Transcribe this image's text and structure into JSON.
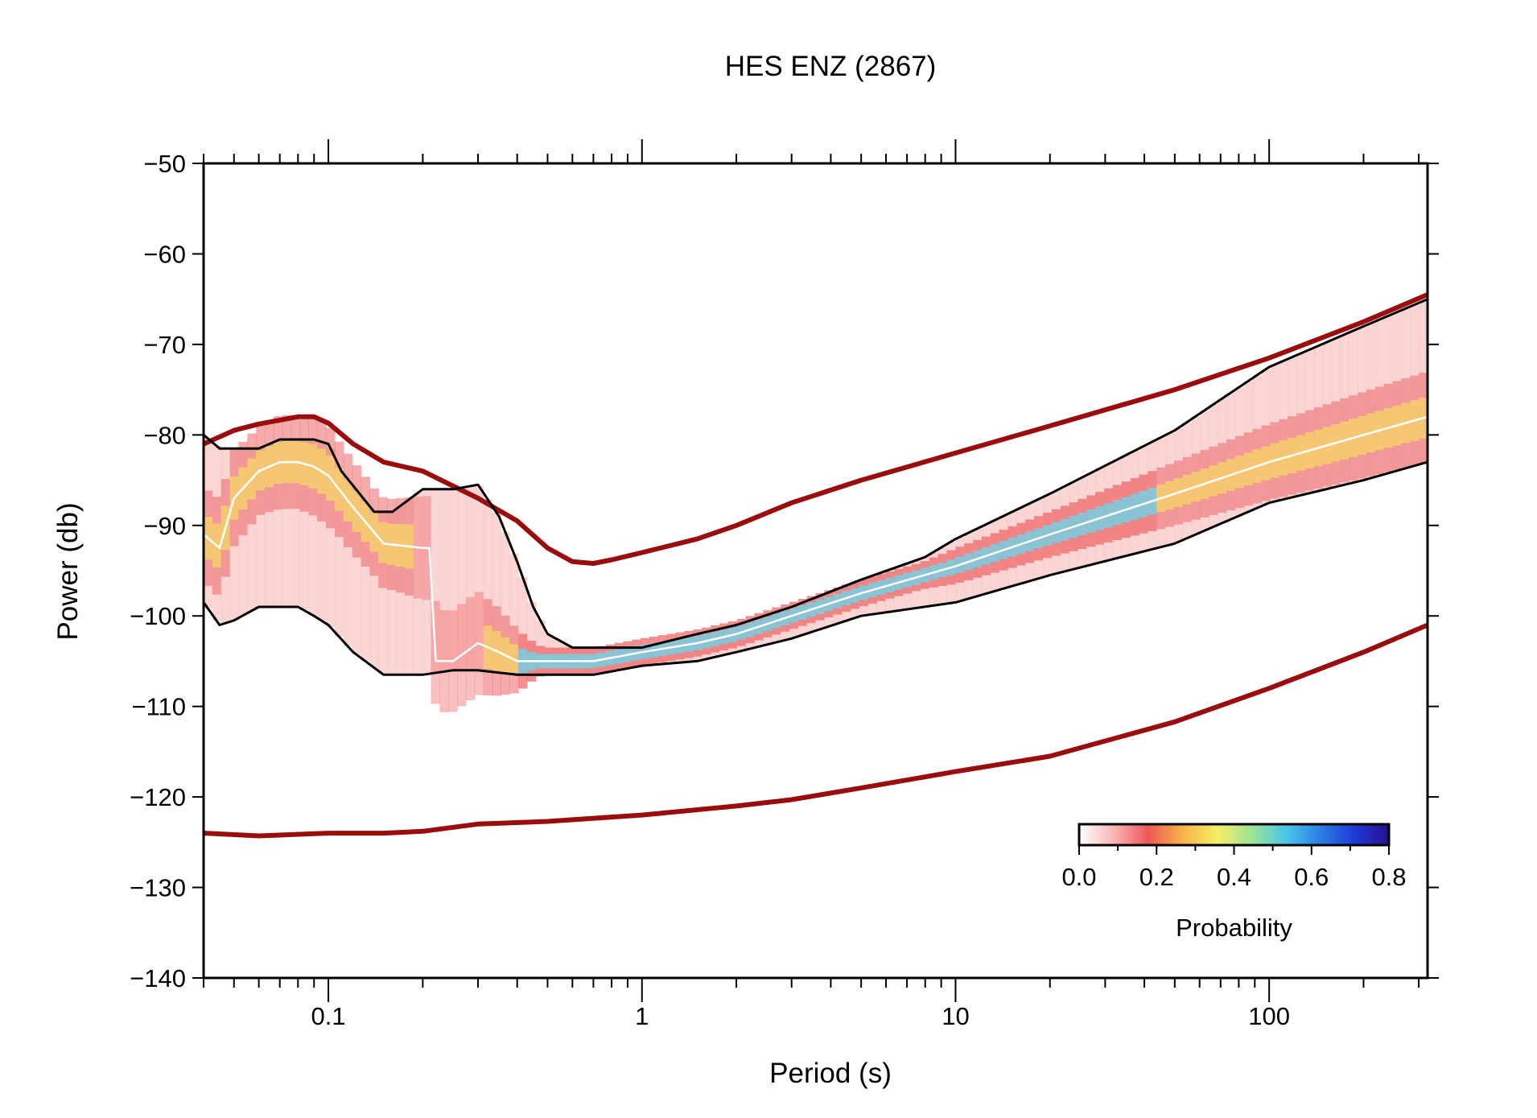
{
  "chart_data": {
    "type": "line",
    "title": "HES ENZ (2867)",
    "xlabel": "Period (s)",
    "ylabel": "Power (db)",
    "x_scale": "log",
    "xlim": [
      0.04,
      320
    ],
    "ylim": [
      -140,
      -50
    ],
    "x_ticks": [
      {
        "value": 0.1,
        "label": "0.1"
      },
      {
        "value": 1,
        "label": "1"
      },
      {
        "value": 10,
        "label": "10"
      },
      {
        "value": 100,
        "label": "100"
      }
    ],
    "y_ticks": [
      {
        "value": -50,
        "label": "−50"
      },
      {
        "value": -60,
        "label": "−60"
      },
      {
        "value": -70,
        "label": "−70"
      },
      {
        "value": -80,
        "label": "−80"
      },
      {
        "value": -90,
        "label": "−90"
      },
      {
        "value": -100,
        "label": "−100"
      },
      {
        "value": -110,
        "label": "−110"
      },
      {
        "value": -120,
        "label": "−120"
      },
      {
        "value": -130,
        "label": "−130"
      },
      {
        "value": -140,
        "label": "−140"
      }
    ],
    "colors": {
      "noise_models": "#9b0d0d",
      "percentile_lines": "#000000",
      "mode_line": "#ffffff",
      "pdf_low": "#f7b8b8",
      "pdf_high": "#2a0f8f"
    },
    "series": [
      {
        "role": "high-noise-model",
        "x": [
          0.04,
          0.05,
          0.06,
          0.08,
          0.09,
          0.1,
          0.12,
          0.15,
          0.2,
          0.3,
          0.4,
          0.5,
          0.6,
          0.7,
          0.8,
          1,
          1.5,
          2,
          3,
          5,
          10,
          20,
          50,
          100,
          200,
          320
        ],
        "y": [
          -81,
          -79.5,
          -78.8,
          -78,
          -78,
          -78.7,
          -81,
          -83,
          -84,
          -87,
          -89.5,
          -92.5,
          -94,
          -94.2,
          -93.8,
          -93,
          -91.5,
          -90,
          -87.5,
          -85,
          -82,
          -79,
          -75,
          -71.5,
          -67.5,
          -64.5
        ]
      },
      {
        "role": "low-noise-model",
        "x": [
          0.04,
          0.06,
          0.1,
          0.15,
          0.2,
          0.3,
          0.5,
          1,
          2,
          3,
          5,
          10,
          20,
          50,
          100,
          200,
          320
        ],
        "y": [
          -124,
          -124.3,
          -124,
          -124,
          -123.8,
          -123,
          -122.7,
          -122,
          -121,
          -120.3,
          -119,
          -117.2,
          -115.5,
          -111.7,
          -108,
          -104,
          -101
        ]
      },
      {
        "role": "upper-percentile",
        "x": [
          0.04,
          0.045,
          0.05,
          0.06,
          0.07,
          0.08,
          0.09,
          0.1,
          0.11,
          0.14,
          0.16,
          0.2,
          0.25,
          0.3,
          0.35,
          0.4,
          0.45,
          0.5,
          0.6,
          0.8,
          1,
          1.5,
          2,
          3,
          5,
          8,
          10,
          20,
          50,
          100,
          200,
          320
        ],
        "y": [
          -80,
          -81.5,
          -81.5,
          -81.5,
          -80.5,
          -80.5,
          -80.5,
          -81,
          -84,
          -88.5,
          -88.5,
          -86,
          -86,
          -85.5,
          -89,
          -94,
          -99,
          -102,
          -103.5,
          -103.5,
          -103.5,
          -102,
          -101,
          -99,
          -96,
          -93.5,
          -91.5,
          -86.5,
          -79.5,
          -72.5,
          -68,
          -65
        ]
      },
      {
        "role": "lower-percentile",
        "x": [
          0.04,
          0.045,
          0.05,
          0.06,
          0.07,
          0.08,
          0.09,
          0.1,
          0.12,
          0.15,
          0.2,
          0.25,
          0.3,
          0.4,
          0.5,
          0.7,
          1,
          1.5,
          2,
          3,
          5,
          10,
          20,
          50,
          100,
          200,
          320
        ],
        "y": [
          -98.5,
          -101,
          -100.5,
          -99,
          -99,
          -99,
          -100,
          -101,
          -104,
          -106.5,
          -106.5,
          -106,
          -106,
          -106.5,
          -106.5,
          -106.5,
          -105.5,
          -105,
          -104,
          -102.5,
          -100,
          -98.5,
          -95.5,
          -92,
          -87.5,
          -85,
          -83
        ]
      },
      {
        "role": "mode",
        "x": [
          0.04,
          0.045,
          0.05,
          0.06,
          0.07,
          0.08,
          0.09,
          0.1,
          0.12,
          0.15,
          0.2,
          0.21,
          0.22,
          0.25,
          0.3,
          0.35,
          0.4,
          0.5,
          0.7,
          1,
          1.5,
          2,
          3,
          5,
          10,
          20,
          50,
          100,
          200,
          320
        ],
        "y": [
          -91,
          -92.5,
          -87,
          -84,
          -83,
          -83,
          -83.5,
          -84.5,
          -88,
          -92,
          -92.5,
          -92.5,
          -105,
          -105,
          -103,
          -104,
          -105,
          -105,
          -105,
          -104,
          -103,
          -102,
          -100,
          -97.5,
          -94.5,
          -91,
          -86.5,
          -83,
          -80,
          -78
        ]
      }
    ],
    "colorbar": {
      "label": "Probability",
      "ticks": [
        "0.0",
        "0.2",
        "0.4",
        "0.6",
        "0.8"
      ],
      "range": [
        0,
        0.8
      ],
      "stops": [
        "#ffffff",
        "#f9b6b6",
        "#ee5757",
        "#f6b24a",
        "#f6ee64",
        "#9ee490",
        "#49c7ea",
        "#2a7fe6",
        "#1e3ad6",
        "#2a0f8f"
      ]
    }
  }
}
